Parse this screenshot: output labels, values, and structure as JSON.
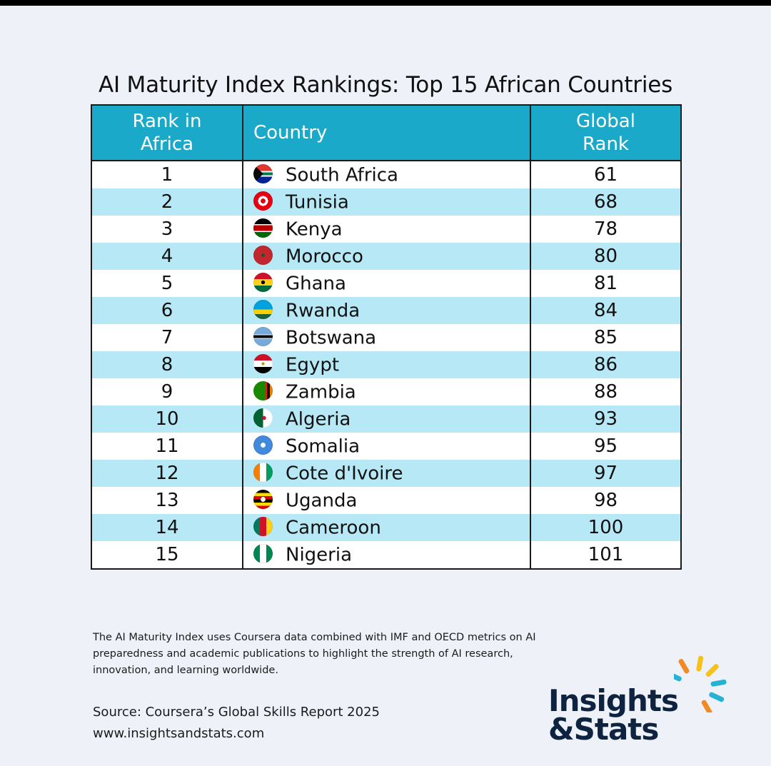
{
  "title": "AI Maturity Index Rankings: Top 15 African Countries",
  "table": {
    "headers": {
      "rank_line1": "Rank in",
      "rank_line2": "Africa",
      "country": "Country",
      "global_line1": "Global",
      "global_line2": "Rank"
    }
  },
  "chart_data": {
    "type": "table",
    "title": "AI Maturity Index Rankings: Top 15 African Countries",
    "columns": [
      "Rank in Africa",
      "Country",
      "Global Rank"
    ],
    "rows": [
      {
        "rank": "1",
        "country": "South Africa",
        "global": "61",
        "flag": "south-africa"
      },
      {
        "rank": "2",
        "country": "Tunisia",
        "global": "68",
        "flag": "tunisia"
      },
      {
        "rank": "3",
        "country": "Kenya",
        "global": "78",
        "flag": "kenya"
      },
      {
        "rank": "4",
        "country": "Morocco",
        "global": "80",
        "flag": "morocco"
      },
      {
        "rank": "5",
        "country": "Ghana",
        "global": "81",
        "flag": "ghana"
      },
      {
        "rank": "6",
        "country": "Rwanda",
        "global": "84",
        "flag": "rwanda"
      },
      {
        "rank": "7",
        "country": "Botswana",
        "global": "85",
        "flag": "botswana"
      },
      {
        "rank": "8",
        "country": "Egypt",
        "global": "86",
        "flag": "egypt"
      },
      {
        "rank": "9",
        "country": "Zambia",
        "global": "88",
        "flag": "zambia"
      },
      {
        "rank": "10",
        "country": "Algeria",
        "global": "93",
        "flag": "algeria"
      },
      {
        "rank": "11",
        "country": "Somalia",
        "global": "95",
        "flag": "somalia"
      },
      {
        "rank": "12",
        "country": "Cote d'Ivoire",
        "global": "97",
        "flag": "cote-divoire"
      },
      {
        "rank": "13",
        "country": "Uganda",
        "global": "98",
        "flag": "uganda"
      },
      {
        "rank": "14",
        "country": "Cameroon",
        "global": "100",
        "flag": "cameroon"
      },
      {
        "rank": "15",
        "country": "Nigeria",
        "global": "101",
        "flag": "nigeria"
      }
    ]
  },
  "footer": {
    "note": "The AI Maturity Index uses Coursera data combined with IMF and OECD metrics on AI preparedness and academic publications to highlight the strength of AI research, innovation, and learning worldwide.",
    "source": "Source: Coursera’s Global Skills Report 2025",
    "website": "www.insightsandstats.com"
  },
  "logo": {
    "line1": "Insights",
    "line2": "&Stats"
  },
  "colors": {
    "header_bg": "#1aa9c8",
    "stripe": "#b6e8f6",
    "logo_text": "#0d2340"
  }
}
